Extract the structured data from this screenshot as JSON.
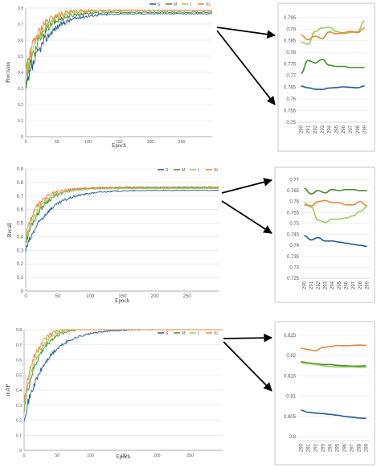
{
  "colors": {
    "S": "#1f5d96",
    "M": "#4e8a2f",
    "L": "#9acd5a",
    "XL": "#e58a3b",
    "arrow": "#000000",
    "grid": "#dddddd"
  },
  "chart_data": [
    {
      "id": "precision-main",
      "type": "line",
      "xlabel": "Epoch",
      "ylabel": "Precision",
      "xticks": [
        0,
        50,
        100,
        150,
        200,
        250
      ],
      "xlim": [
        0,
        299
      ],
      "yticks": [
        0,
        0.1,
        0.2,
        0.3,
        0.4,
        0.5,
        0.6,
        0.7,
        0.8
      ],
      "ylim": [
        0,
        0.8
      ],
      "legend": [
        "S",
        "M",
        "L",
        "XL"
      ],
      "legend_position": "top-right",
      "series": [
        {
          "name": "S",
          "start": 0.28,
          "plateau": 0.765,
          "rate": 0.035,
          "noise": 0.05
        },
        {
          "name": "M",
          "start": 0.33,
          "plateau": 0.774,
          "rate": 0.042,
          "noise": 0.05
        },
        {
          "name": "L",
          "start": 0.36,
          "plateau": 0.784,
          "rate": 0.045,
          "noise": 0.05
        },
        {
          "name": "XL",
          "start": 0.4,
          "plateau": 0.786,
          "rate": 0.05,
          "noise": 0.05
        }
      ]
    },
    {
      "id": "precision-zoom",
      "type": "line",
      "categories": [
        "290",
        "291",
        "292",
        "293",
        "294",
        "295",
        "296",
        "297",
        "298",
        "299"
      ],
      "yticks": [
        0.75,
        0.755,
        0.76,
        0.765,
        0.77,
        0.775,
        0.78,
        0.785,
        0.79,
        0.795
      ],
      "ytick_labels": [
        "0.75",
        "0.755",
        "0.76",
        "0.765",
        "0.77",
        "0.775",
        "0.78",
        "0.785",
        "0.79",
        "0.795"
      ],
      "ylim": [
        0.75,
        0.797
      ],
      "series": [
        {
          "name": "S",
          "values": [
            0.7655,
            0.7648,
            0.7642,
            0.7641,
            0.7647,
            0.7649,
            0.7652,
            0.765,
            0.7648,
            0.7656
          ]
        },
        {
          "name": "M",
          "values": [
            0.771,
            0.7765,
            0.7755,
            0.777,
            0.7745,
            0.774,
            0.774,
            0.7735,
            0.7735,
            0.7735
          ]
        },
        {
          "name": "L",
          "values": [
            0.7845,
            0.7835,
            0.789,
            0.7905,
            0.7908,
            0.789,
            0.788,
            0.7885,
            0.789,
            0.7935
          ]
        },
        {
          "name": "XL",
          "values": [
            0.7875,
            0.7855,
            0.787,
            0.786,
            0.7888,
            0.788,
            0.7885,
            0.789,
            0.7885,
            0.7905
          ]
        }
      ]
    },
    {
      "id": "recall-main",
      "type": "line",
      "xlabel": "Epoch",
      "ylabel": "Recall",
      "xticks": [
        0,
        50,
        100,
        150,
        200,
        250
      ],
      "xlim": [
        0,
        299
      ],
      "yticks": [
        0,
        0.1,
        0.2,
        0.3,
        0.4,
        0.5,
        0.6,
        0.7,
        0.8,
        0.9
      ],
      "ylim": [
        0,
        0.9
      ],
      "legend": [
        "S",
        "M",
        "L",
        "XL"
      ],
      "legend_position": "top-right",
      "series": [
        {
          "name": "S",
          "start": 0.3,
          "plateau": 0.742,
          "rate": 0.03,
          "noise": 0.03
        },
        {
          "name": "M",
          "start": 0.36,
          "plateau": 0.765,
          "rate": 0.04,
          "noise": 0.03
        },
        {
          "name": "L",
          "start": 0.38,
          "plateau": 0.755,
          "rate": 0.045,
          "noise": 0.03
        },
        {
          "name": "XL",
          "start": 0.42,
          "plateau": 0.76,
          "rate": 0.05,
          "noise": 0.03
        }
      ]
    },
    {
      "id": "recall-zoom",
      "type": "line",
      "categories": [
        "290",
        "291",
        "292",
        "293",
        "294",
        "295",
        "296",
        "297",
        "298",
        "299"
      ],
      "yticks": [
        0.725,
        0.73,
        0.735,
        0.74,
        0.745,
        0.75,
        0.755,
        0.76,
        0.765,
        0.77
      ],
      "ytick_labels": [
        "0.725",
        "0.73",
        "0.735",
        "0.74",
        "0.745",
        "0.75",
        "0.755",
        "0.76",
        "0.765",
        "0.77"
      ],
      "ylim": [
        0.725,
        0.772
      ],
      "series": [
        {
          "name": "S",
          "values": [
            0.7445,
            0.7425,
            0.7435,
            0.742,
            0.742,
            0.7415,
            0.741,
            0.7405,
            0.74,
            0.7395
          ]
        },
        {
          "name": "M",
          "values": [
            0.766,
            0.7635,
            0.765,
            0.764,
            0.7655,
            0.765,
            0.7655,
            0.7655,
            0.765,
            0.765
          ]
        },
        {
          "name": "L",
          "values": [
            0.7595,
            0.7575,
            0.7515,
            0.7505,
            0.752,
            0.752,
            0.7525,
            0.7535,
            0.7555,
            0.7575
          ]
        },
        {
          "name": "XL",
          "values": [
            0.7585,
            0.758,
            0.76,
            0.7605,
            0.7595,
            0.7595,
            0.7585,
            0.7585,
            0.76,
            0.758
          ]
        }
      ]
    },
    {
      "id": "map-main",
      "type": "line",
      "xlabel": "Epoch",
      "ylabel": "mAP",
      "xticks": [
        0,
        50,
        100,
        150,
        200,
        250
      ],
      "xlim": [
        0,
        299
      ],
      "yticks": [
        0,
        0.1,
        0.2,
        0.3,
        0.4,
        0.5,
        0.6,
        0.7,
        0.8
      ],
      "ylim": [
        0,
        0.8
      ],
      "legend": [
        "S",
        "M",
        "L",
        "XL"
      ],
      "legend_position": "top-right",
      "series": [
        {
          "name": "S",
          "start": 0.22,
          "plateau": 0.803,
          "rate": 0.03,
          "noise": 0.03
        },
        {
          "name": "M",
          "start": 0.28,
          "plateau": 0.817,
          "rate": 0.045,
          "noise": 0.03
        },
        {
          "name": "L",
          "start": 0.3,
          "plateau": 0.818,
          "rate": 0.05,
          "noise": 0.03
        },
        {
          "name": "XL",
          "start": 0.35,
          "plateau": 0.822,
          "rate": 0.055,
          "noise": 0.03
        }
      ]
    },
    {
      "id": "map-zoom",
      "type": "line",
      "categories": [
        "290",
        "291",
        "292",
        "293",
        "294",
        "295",
        "296",
        "297",
        "298",
        "299"
      ],
      "yticks": [
        0.8,
        0.805,
        0.81,
        0.815,
        0.82,
        0.825
      ],
      "ytick_labels": [
        "0.8",
        "0.805",
        "0.81",
        "0.815",
        "0.82",
        "0.825"
      ],
      "ylim": [
        0.799,
        0.826
      ],
      "series": [
        {
          "name": "S",
          "values": [
            0.8065,
            0.806,
            0.8058,
            0.8057,
            0.8055,
            0.8053,
            0.805,
            0.8048,
            0.8046,
            0.8045
          ]
        },
        {
          "name": "M",
          "values": [
            0.8185,
            0.8182,
            0.818,
            0.8178,
            0.8178,
            0.8176,
            0.8175,
            0.8174,
            0.8174,
            0.8175
          ]
        },
        {
          "name": "L",
          "values": [
            0.8182,
            0.818,
            0.8178,
            0.8175,
            0.8173,
            0.8172,
            0.8172,
            0.8172,
            0.8171,
            0.8171
          ]
        },
        {
          "name": "XL",
          "values": [
            0.8218,
            0.8215,
            0.8212,
            0.822,
            0.8222,
            0.8225,
            0.8224,
            0.8225,
            0.8226,
            0.8225
          ]
        }
      ]
    }
  ]
}
